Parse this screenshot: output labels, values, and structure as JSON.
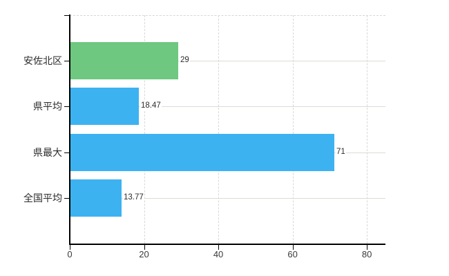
{
  "chart_data": {
    "type": "bar",
    "orientation": "horizontal",
    "title": "",
    "xlabel": "",
    "ylabel": "",
    "categories": [
      "安佐北区",
      "県平均",
      "県最大",
      "全国平均"
    ],
    "values": [
      29,
      18.47,
      71,
      13.77
    ],
    "value_labels": [
      "29",
      "18.47",
      "71",
      "13.77"
    ],
    "bar_colors": [
      "#6ec880",
      "#3db2f0",
      "#3db2f0",
      "#3db2f0"
    ],
    "xlim": [
      0,
      85
    ],
    "x_ticks": [
      0,
      20,
      40,
      60,
      80
    ],
    "x_tick_labels": [
      "0",
      "20",
      "40",
      "60",
      "80"
    ],
    "grid": true,
    "legend": false
  },
  "colors": {
    "background": "#ffffff",
    "axis": "#000000",
    "grid_horizontal": "#d9ddd3",
    "grid_vertical": "#d8d8d8",
    "text": "#2b2b2b",
    "bar_green": "#6ec880",
    "bar_blue": "#3db2f0"
  }
}
